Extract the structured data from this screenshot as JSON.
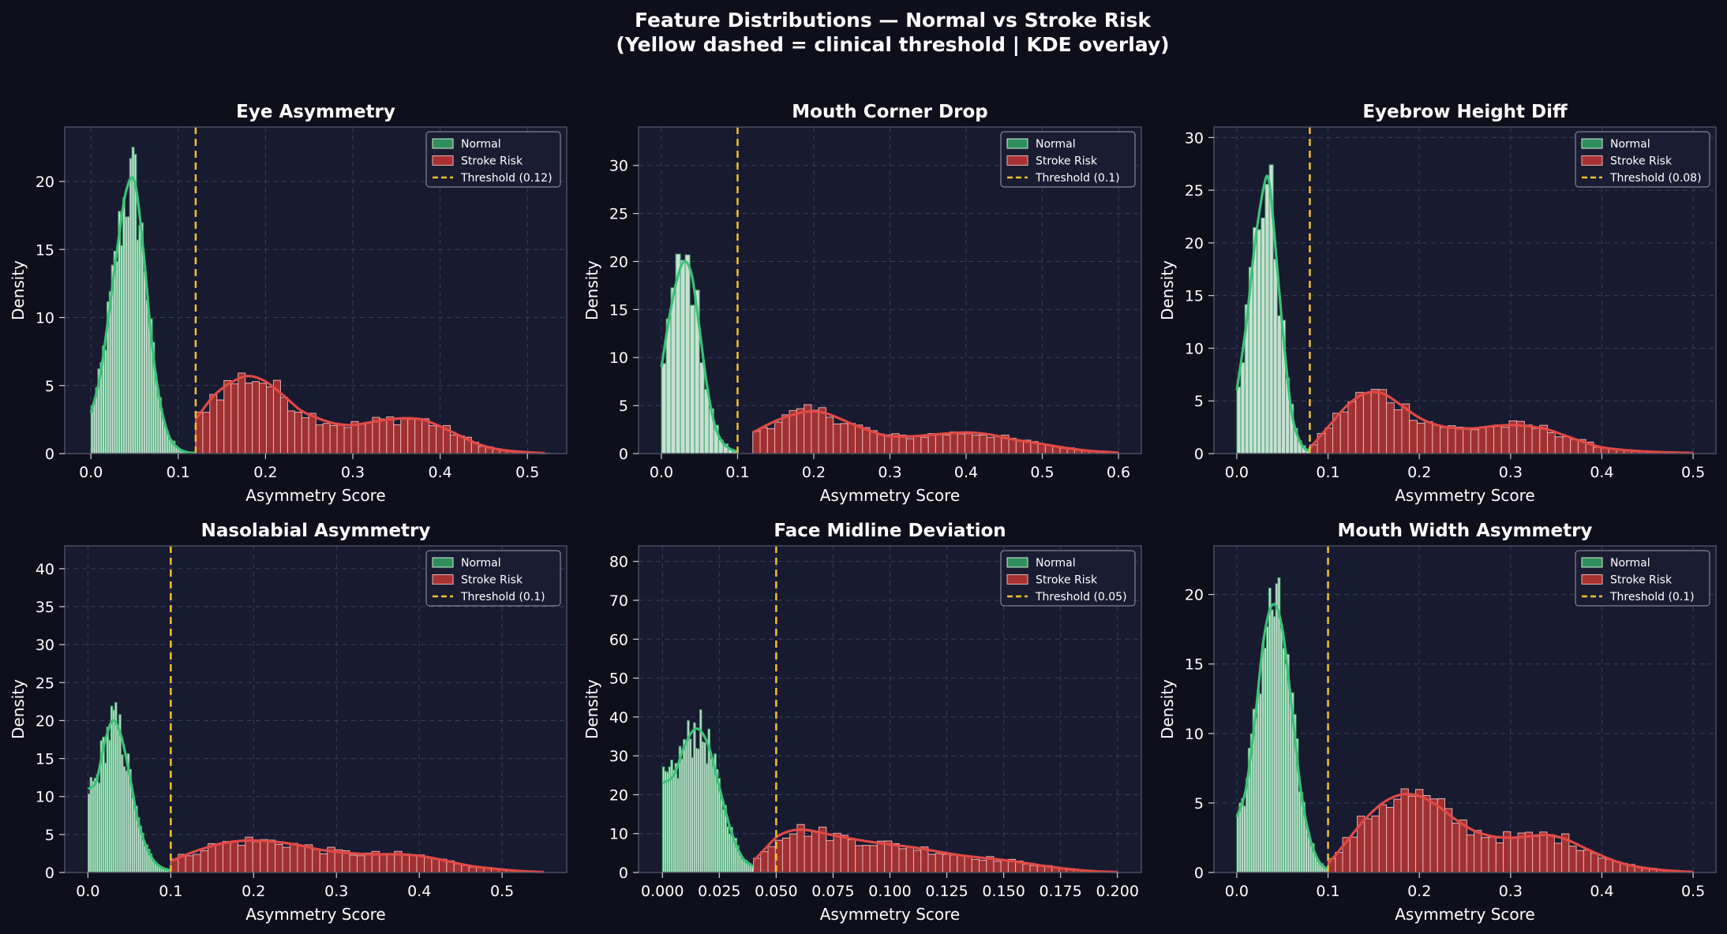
{
  "figure": {
    "title_line1": "Feature Distributions — Normal vs Stroke Risk",
    "title_line2": "(Yellow dashed = clinical threshold | KDE overlay)"
  },
  "colors": {
    "background": "#0e0f1a",
    "axes_bg": "#181a30",
    "grid": "#3a3d5c",
    "normal_fill": "#d2ecdc",
    "normal_edge": "#3fa06a",
    "normal_line": "#3cc278",
    "normal_legend": "#2f8f5a",
    "stroke_fill": "#a83232",
    "stroke_edge": "#e8b0b0",
    "stroke_line": "#e04a45",
    "threshold": "#f2c12e"
  },
  "chart_data": [
    {
      "type": "histogram",
      "title": "Eye Asymmetry",
      "xlabel": "Asymmetry Score",
      "ylabel": "Density",
      "xlim": [
        -0.03,
        0.545
      ],
      "ylim": [
        0,
        24
      ],
      "xticks": [
        0.0,
        0.1,
        0.2,
        0.3,
        0.4,
        0.5
      ],
      "yticks": [
        0,
        5,
        10,
        15,
        20
      ],
      "xtick_labels": [
        "0.0",
        "0.1",
        "0.2",
        "0.3",
        "0.4",
        "0.5"
      ],
      "ytick_labels": [
        "0",
        "5",
        "10",
        "15",
        "20"
      ],
      "threshold": 0.12,
      "legend": [
        "Normal",
        "Stroke Risk",
        "Threshold (0.12)"
      ],
      "legend_position": "top-right",
      "grid": true,
      "series": [
        {
          "name": "Normal",
          "range": [
            0.0,
            0.12
          ],
          "kde": [
            [
              0.0,
              3
            ],
            [
              0.01,
              5.5
            ],
            [
              0.02,
              10
            ],
            [
              0.03,
              15
            ],
            [
              0.04,
              19.2
            ],
            [
              0.05,
              20
            ],
            [
              0.06,
              15
            ],
            [
              0.07,
              8
            ],
            [
              0.08,
              3.5
            ],
            [
              0.09,
              1.2
            ],
            [
              0.1,
              0.4
            ],
            [
              0.11,
              0.1
            ],
            [
              0.12,
              0.05
            ]
          ]
        },
        {
          "name": "Stroke Risk",
          "range": [
            0.12,
            0.525
          ],
          "kde": [
            [
              0.12,
              2.5
            ],
            [
              0.14,
              4.2
            ],
            [
              0.16,
              5.2
            ],
            [
              0.18,
              5.7
            ],
            [
              0.2,
              5.3
            ],
            [
              0.22,
              4.3
            ],
            [
              0.24,
              3.2
            ],
            [
              0.26,
              2.6
            ],
            [
              0.28,
              2.2
            ],
            [
              0.3,
              2.1
            ],
            [
              0.32,
              2.3
            ],
            [
              0.34,
              2.5
            ],
            [
              0.36,
              2.6
            ],
            [
              0.38,
              2.5
            ],
            [
              0.4,
              2.0
            ],
            [
              0.42,
              1.4
            ],
            [
              0.44,
              0.8
            ],
            [
              0.46,
              0.4
            ],
            [
              0.48,
              0.2
            ],
            [
              0.5,
              0.1
            ],
            [
              0.52,
              0.03
            ]
          ]
        }
      ]
    },
    {
      "type": "histogram",
      "title": "Mouth Corner Drop",
      "xlabel": "Asymmetry Score",
      "ylabel": "Density",
      "xlim": [
        -0.03,
        0.63
      ],
      "ylim": [
        0,
        34
      ],
      "xticks": [
        0.0,
        0.1,
        0.2,
        0.3,
        0.4,
        0.5,
        0.6
      ],
      "yticks": [
        0,
        5,
        10,
        15,
        20,
        25,
        30
      ],
      "xtick_labels": [
        "0.0",
        "0.1",
        "0.2",
        "0.3",
        "0.4",
        "0.5",
        "0.6"
      ],
      "ytick_labels": [
        "0",
        "5",
        "10",
        "15",
        "20",
        "25",
        "30"
      ],
      "threshold": 0.1,
      "legend": [
        "Normal",
        "Stroke Risk",
        "Threshold (0.1)"
      ],
      "legend_position": "top-right",
      "grid": true,
      "series": [
        {
          "name": "Normal",
          "range": [
            0.0,
            0.1
          ],
          "kde": [
            [
              0.0,
              9
            ],
            [
              0.01,
              14
            ],
            [
              0.02,
              18
            ],
            [
              0.03,
              20
            ],
            [
              0.04,
              18.5
            ],
            [
              0.05,
              13
            ],
            [
              0.06,
              7
            ],
            [
              0.07,
              3
            ],
            [
              0.08,
              1.2
            ],
            [
              0.09,
              0.5
            ],
            [
              0.1,
              0.2
            ]
          ]
        },
        {
          "name": "Stroke Risk",
          "range": [
            0.12,
            0.6
          ],
          "kde": [
            [
              0.12,
              2.2
            ],
            [
              0.15,
              3.4
            ],
            [
              0.18,
              4.2
            ],
            [
              0.2,
              4.4
            ],
            [
              0.22,
              4.1
            ],
            [
              0.25,
              3.1
            ],
            [
              0.28,
              2.2
            ],
            [
              0.3,
              1.8
            ],
            [
              0.33,
              1.8
            ],
            [
              0.36,
              2.0
            ],
            [
              0.4,
              2.2
            ],
            [
              0.43,
              2.0
            ],
            [
              0.46,
              1.5
            ],
            [
              0.5,
              1.0
            ],
            [
              0.53,
              0.6
            ],
            [
              0.56,
              0.3
            ],
            [
              0.6,
              0.1
            ]
          ]
        }
      ]
    },
    {
      "type": "histogram",
      "title": "Eyebrow Height Diff",
      "xlabel": "Asymmetry Score",
      "ylabel": "Density",
      "xlim": [
        -0.025,
        0.525
      ],
      "ylim": [
        0,
        31
      ],
      "xticks": [
        0.0,
        0.1,
        0.2,
        0.3,
        0.4,
        0.5
      ],
      "yticks": [
        0,
        5,
        10,
        15,
        20,
        25,
        30
      ],
      "xtick_labels": [
        "0.0",
        "0.1",
        "0.2",
        "0.3",
        "0.4",
        "0.5"
      ],
      "ytick_labels": [
        "0",
        "5",
        "10",
        "15",
        "20",
        "25",
        "30"
      ],
      "threshold": 0.08,
      "legend": [
        "Normal",
        "Stroke Risk",
        "Threshold (0.08)"
      ],
      "legend_position": "top-right",
      "grid": true,
      "series": [
        {
          "name": "Normal",
          "range": [
            0.0,
            0.08
          ],
          "kde": [
            [
              0.0,
              6
            ],
            [
              0.01,
              12
            ],
            [
              0.02,
              20
            ],
            [
              0.03,
              25.5
            ],
            [
              0.035,
              26
            ],
            [
              0.04,
              22
            ],
            [
              0.05,
              12
            ],
            [
              0.06,
              4
            ],
            [
              0.07,
              1
            ],
            [
              0.08,
              0.2
            ]
          ]
        },
        {
          "name": "Stroke Risk",
          "range": [
            0.08,
            0.5
          ],
          "kde": [
            [
              0.08,
              0.5
            ],
            [
              0.1,
              2.5
            ],
            [
              0.12,
              4.5
            ],
            [
              0.14,
              5.7
            ],
            [
              0.16,
              5.7
            ],
            [
              0.18,
              4.6
            ],
            [
              0.2,
              3.4
            ],
            [
              0.22,
              2.7
            ],
            [
              0.24,
              2.4
            ],
            [
              0.26,
              2.4
            ],
            [
              0.28,
              2.6
            ],
            [
              0.3,
              2.7
            ],
            [
              0.32,
              2.6
            ],
            [
              0.34,
              2.3
            ],
            [
              0.36,
              1.7
            ],
            [
              0.38,
              1.1
            ],
            [
              0.4,
              0.6
            ],
            [
              0.43,
              0.3
            ],
            [
              0.46,
              0.15
            ],
            [
              0.5,
              0.05
            ]
          ]
        }
      ]
    },
    {
      "type": "histogram",
      "title": "Nasolabial Asymmetry",
      "xlabel": "Asymmetry Score",
      "ylabel": "Density",
      "xlim": [
        -0.028,
        0.578
      ],
      "ylim": [
        0,
        43
      ],
      "xticks": [
        0.0,
        0.1,
        0.2,
        0.3,
        0.4,
        0.5
      ],
      "yticks": [
        0,
        5,
        10,
        15,
        20,
        25,
        30,
        35,
        40
      ],
      "xtick_labels": [
        "0.0",
        "0.1",
        "0.2",
        "0.3",
        "0.4",
        "0.5"
      ],
      "ytick_labels": [
        "0",
        "5",
        "10",
        "15",
        "20",
        "25",
        "30",
        "35",
        "40"
      ],
      "threshold": 0.1,
      "legend": [
        "Normal",
        "Stroke Risk",
        "Threshold (0.1)"
      ],
      "legend_position": "top-right",
      "grid": true,
      "series": [
        {
          "name": "Normal",
          "range": [
            0.0,
            0.1
          ],
          "kde": [
            [
              0.0,
              11
            ],
            [
              0.01,
              12
            ],
            [
              0.02,
              17
            ],
            [
              0.03,
              20
            ],
            [
              0.04,
              18
            ],
            [
              0.05,
              13
            ],
            [
              0.06,
              7
            ],
            [
              0.07,
              3.5
            ],
            [
              0.08,
              1.5
            ],
            [
              0.09,
              0.6
            ],
            [
              0.1,
              0.3
            ]
          ]
        },
        {
          "name": "Stroke Risk",
          "range": [
            0.1,
            0.55
          ],
          "kde": [
            [
              0.1,
              1.5
            ],
            [
              0.13,
              2.8
            ],
            [
              0.16,
              3.8
            ],
            [
              0.19,
              4.2
            ],
            [
              0.22,
              4.1
            ],
            [
              0.25,
              3.7
            ],
            [
              0.28,
              3.0
            ],
            [
              0.31,
              2.6
            ],
            [
              0.34,
              2.4
            ],
            [
              0.37,
              2.4
            ],
            [
              0.4,
              2.2
            ],
            [
              0.43,
              1.6
            ],
            [
              0.46,
              0.9
            ],
            [
              0.49,
              0.5
            ],
            [
              0.52,
              0.2
            ],
            [
              0.55,
              0.05
            ]
          ]
        }
      ]
    },
    {
      "type": "histogram",
      "title": "Face Midline Deviation",
      "xlabel": "Asymmetry Score",
      "ylabel": "Density",
      "xlim": [
        -0.0105,
        0.2105
      ],
      "ylim": [
        0,
        84
      ],
      "xticks": [
        0.0,
        0.025,
        0.05,
        0.075,
        0.1,
        0.125,
        0.15,
        0.175,
        0.2
      ],
      "yticks": [
        0,
        10,
        20,
        30,
        40,
        50,
        60,
        70,
        80
      ],
      "xtick_labels": [
        "0.000",
        "0.025",
        "0.050",
        "0.075",
        "0.100",
        "0.125",
        "0.150",
        "0.175",
        "0.200"
      ],
      "ytick_labels": [
        "0",
        "10",
        "20",
        "30",
        "40",
        "50",
        "60",
        "70",
        "80"
      ],
      "threshold": 0.05,
      "legend": [
        "Normal",
        "Stroke Risk",
        "Threshold (0.05)"
      ],
      "legend_position": "top-right",
      "grid": true,
      "series": [
        {
          "name": "Normal",
          "range": [
            0.0,
            0.04
          ],
          "kde": [
            [
              0.0,
              23
            ],
            [
              0.005,
              25
            ],
            [
              0.01,
              33
            ],
            [
              0.015,
              37
            ],
            [
              0.02,
              33
            ],
            [
              0.025,
              22
            ],
            [
              0.03,
              11
            ],
            [
              0.035,
              4
            ],
            [
              0.04,
              1.5
            ],
            [
              0.045,
              0.5
            ],
            [
              0.05,
              0.2
            ]
          ]
        },
        {
          "name": "Stroke Risk",
          "range": [
            0.04,
            0.2
          ],
          "kde": [
            [
              0.04,
              3
            ],
            [
              0.045,
              6
            ],
            [
              0.05,
              9
            ],
            [
              0.055,
              10.5
            ],
            [
              0.06,
              11
            ],
            [
              0.065,
              10.8
            ],
            [
              0.07,
              10.2
            ],
            [
              0.08,
              9
            ],
            [
              0.09,
              8
            ],
            [
              0.1,
              7.2
            ],
            [
              0.11,
              6.5
            ],
            [
              0.12,
              5.5
            ],
            [
              0.13,
              4.5
            ],
            [
              0.14,
              3.8
            ],
            [
              0.15,
              3.2
            ],
            [
              0.16,
              2.4
            ],
            [
              0.17,
              1.5
            ],
            [
              0.18,
              0.8
            ],
            [
              0.19,
              0.3
            ],
            [
              0.2,
              0.1
            ]
          ]
        }
      ]
    },
    {
      "type": "histogram",
      "title": "Mouth Width Asymmetry",
      "xlabel": "Asymmetry Score",
      "ylabel": "Density",
      "xlim": [
        -0.025,
        0.525
      ],
      "ylim": [
        0,
        23.5
      ],
      "xticks": [
        0.0,
        0.1,
        0.2,
        0.3,
        0.4,
        0.5
      ],
      "yticks": [
        0,
        5,
        10,
        15,
        20
      ],
      "xtick_labels": [
        "0.0",
        "0.1",
        "0.2",
        "0.3",
        "0.4",
        "0.5"
      ],
      "ytick_labels": [
        "0",
        "5",
        "10",
        "15",
        "20"
      ],
      "threshold": 0.1,
      "legend": [
        "Normal",
        "Stroke Risk",
        "Threshold (0.1)"
      ],
      "legend_position": "top-right",
      "grid": true,
      "series": [
        {
          "name": "Normal",
          "range": [
            0.0,
            0.1
          ],
          "kde": [
            [
              0.0,
              4
            ],
            [
              0.01,
              6
            ],
            [
              0.02,
              11
            ],
            [
              0.03,
              17
            ],
            [
              0.04,
              19.3
            ],
            [
              0.05,
              17.5
            ],
            [
              0.06,
              12
            ],
            [
              0.07,
              6
            ],
            [
              0.08,
              2.5
            ],
            [
              0.09,
              0.8
            ],
            [
              0.1,
              0.2
            ]
          ]
        },
        {
          "name": "Stroke Risk",
          "range": [
            0.1,
            0.5
          ],
          "kde": [
            [
              0.1,
              0.6
            ],
            [
              0.12,
              2.2
            ],
            [
              0.14,
              3.8
            ],
            [
              0.16,
              5.0
            ],
            [
              0.18,
              5.6
            ],
            [
              0.2,
              5.5
            ],
            [
              0.22,
              4.8
            ],
            [
              0.24,
              3.8
            ],
            [
              0.26,
              3.0
            ],
            [
              0.28,
              2.6
            ],
            [
              0.3,
              2.5
            ],
            [
              0.32,
              2.6
            ],
            [
              0.34,
              2.7
            ],
            [
              0.36,
              2.4
            ],
            [
              0.38,
              1.8
            ],
            [
              0.4,
              1.2
            ],
            [
              0.42,
              0.7
            ],
            [
              0.44,
              0.4
            ],
            [
              0.47,
              0.15
            ],
            [
              0.5,
              0.03
            ]
          ]
        }
      ]
    }
  ]
}
